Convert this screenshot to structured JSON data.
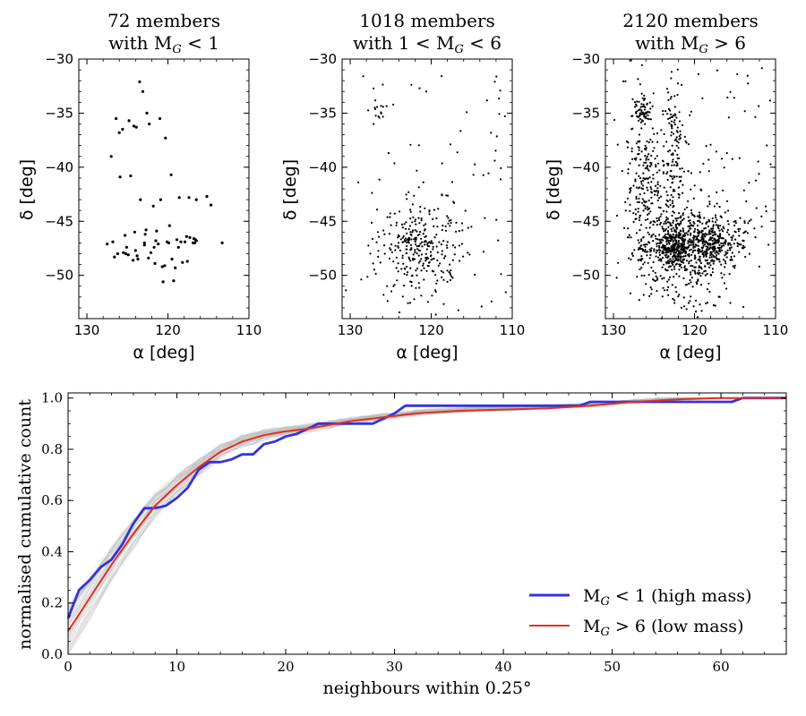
{
  "chart_data": {
    "panels": [
      {
        "type": "scatter",
        "title_line1": "72 members",
        "title_pre": "with M",
        "title_sub": "G",
        "title_post": " < 1",
        "n_points": 72,
        "xlabel": "α [deg]",
        "ylabel": "δ [deg]",
        "xlim": [
          131,
          110
        ],
        "ylim": [
          -54,
          -30
        ],
        "xticks": [
          130,
          120,
          110
        ],
        "yticks": [
          -30,
          -35,
          -40,
          -45,
          -50
        ],
        "x": [
          126.0,
          125.6,
          124.8,
          124.2,
          123.9,
          123.5,
          123.1,
          122.6,
          122.3,
          121.0,
          120.3,
          119.6,
          125.9,
          126.4,
          124.6,
          123.4,
          122.7,
          121.8,
          120.9,
          119.8,
          118.6,
          117.4,
          116.5,
          115.2,
          114.7,
          125.3,
          124.1,
          122.9,
          121.5,
          120.1,
          118.9,
          117.7,
          116.8,
          127.5,
          126.8,
          125.1,
          123.8,
          122.1,
          121.2,
          119.9,
          118.7,
          117.9,
          116.9,
          116.5,
          126.2,
          124.9,
          123.7,
          122.4,
          121.6,
          120.4,
          119.1,
          117.6,
          116.7,
          113.3,
          125.5,
          124.3,
          122.9,
          121.7,
          120.6,
          119.3,
          118.2,
          117.3,
          116.6,
          127.0,
          126.6,
          125.2,
          124.0,
          122.8,
          121.4,
          120.7,
          119.5,
          118.4
        ],
        "y": [
          -36.8,
          -36.5,
          -35.7,
          -36.2,
          -36.3,
          -32.1,
          -33.0,
          -35.0,
          -36.0,
          -35.5,
          -37.3,
          -40.7,
          -40.9,
          -35.5,
          -40.8,
          -43.0,
          -45.8,
          -43.6,
          -43.0,
          -45.4,
          -42.8,
          -42.8,
          -43.0,
          -42.7,
          -43.5,
          -46.3,
          -46.0,
          -47.2,
          -46.8,
          -46.9,
          -46.7,
          -46.4,
          -46.6,
          -47.1,
          -46.9,
          -47.4,
          -48.2,
          -47.9,
          -47.1,
          -47.0,
          -47.4,
          -46.9,
          -47.0,
          -46.8,
          -48.0,
          -48.1,
          -48.5,
          -48.4,
          -48.9,
          -49.1,
          -49.3,
          -48.7,
          -47.0,
          -47.0,
          -47.9,
          -48.6,
          -47.0,
          -47.4,
          -50.6,
          -50.5,
          -48.8,
          -46.5,
          -46.7,
          -39.0,
          -48.3,
          -48.0,
          -47.7,
          -46.2,
          -45.9,
          -49.2,
          -48.5,
          -46.9
        ],
        "scatter_seed": 11
      },
      {
        "type": "scatter",
        "title_line1": "1018 members",
        "title_pre": "with 1 < M",
        "title_sub": "G",
        "title_post": " < 6",
        "n_points": 1018,
        "xlabel": "α [deg]",
        "ylabel": "δ [deg]",
        "xlim": [
          131,
          110
        ],
        "ylim": [
          -54,
          -30
        ],
        "xticks": [
          130,
          120,
          110
        ],
        "yticks": [
          -30,
          -35,
          -40,
          -45,
          -50
        ],
        "clusters": [
          {
            "cx": 121.0,
            "cy": -47.5,
            "sx": 2.8,
            "sy": 2.4,
            "n": 260
          },
          {
            "cx": 122.4,
            "cy": -47.0,
            "sx": 0.7,
            "sy": 0.7,
            "n": 40
          },
          {
            "cx": 126.6,
            "cy": -35.0,
            "sx": 0.5,
            "sy": 0.6,
            "n": 14
          }
        ],
        "uniform_box": [
          129.5,
          110.5,
          -53.0,
          -31.0
        ],
        "uniform_n": 70,
        "scatter_seed": 23
      },
      {
        "type": "scatter",
        "title_line1": "2120 members",
        "title_pre": "with M",
        "title_sub": "G",
        "title_post": " > 6",
        "n_points": 2120,
        "xlabel": "α [deg]",
        "ylabel": "δ [deg]",
        "xlim": [
          131,
          110
        ],
        "ylim": [
          -54,
          -30
        ],
        "xticks": [
          130,
          120,
          110
        ],
        "yticks": [
          -30,
          -35,
          -40,
          -45,
          -50
        ],
        "clusters": [
          {
            "cx": 121.5,
            "cy": -47.5,
            "sx": 2.8,
            "sy": 2.3,
            "n": 520
          },
          {
            "cx": 122.3,
            "cy": -47.2,
            "sx": 0.9,
            "sy": 0.9,
            "n": 200
          },
          {
            "cx": 117.8,
            "cy": -46.8,
            "sx": 1.3,
            "sy": 1.0,
            "n": 170
          },
          {
            "cx": 126.5,
            "cy": -34.8,
            "sx": 0.5,
            "sy": 0.6,
            "n": 55
          },
          {
            "cx": 126.0,
            "cy": -41.0,
            "sx": 1.5,
            "sy": 3.5,
            "n": 200
          },
          {
            "cx": 122.5,
            "cy": -38.0,
            "sx": 0.8,
            "sy": 4.0,
            "n": 130
          },
          {
            "cx": 126.5,
            "cy": -48.0,
            "sx": 0.5,
            "sy": 0.7,
            "n": 25
          },
          {
            "cx": 115.5,
            "cy": -47.0,
            "sx": 1.5,
            "sy": 1.5,
            "n": 60
          }
        ],
        "uniform_box": [
          129.5,
          110.5,
          -53.0,
          -30.5
        ],
        "uniform_n": 110,
        "scatter_seed": 37
      },
      {
        "type": "line",
        "xlabel": "neighbours within 0.25°",
        "ylabel": "normalised cumulative count",
        "xlim": [
          0,
          66
        ],
        "ylim": [
          0,
          1.02
        ],
        "xticks": [
          0,
          10,
          20,
          30,
          40,
          50,
          60
        ],
        "yticks": [
          0.0,
          0.2,
          0.4,
          0.6,
          0.8,
          1.0
        ],
        "series": [
          {
            "name_pre": "M",
            "name_sub": "G",
            "name_post": " < 1 (high mass)",
            "color": "#3333dd",
            "x": [
              0,
              1,
              2,
              3,
              4,
              5,
              6,
              7,
              8,
              9,
              10,
              11,
              12,
              13,
              14,
              15,
              16,
              17,
              18,
              19,
              20,
              21,
              22,
              23,
              24,
              25,
              26,
              27,
              28,
              29,
              30,
              31,
              32,
              40,
              47,
              48,
              52,
              55,
              61,
              62,
              66
            ],
            "y": [
              0.14,
              0.25,
              0.29,
              0.34,
              0.37,
              0.43,
              0.51,
              0.57,
              0.57,
              0.58,
              0.61,
              0.65,
              0.72,
              0.75,
              0.75,
              0.76,
              0.78,
              0.78,
              0.82,
              0.83,
              0.85,
              0.86,
              0.88,
              0.9,
              0.9,
              0.9,
              0.9,
              0.9,
              0.9,
              0.92,
              0.94,
              0.97,
              0.97,
              0.97,
              0.97,
              0.985,
              0.985,
              0.985,
              0.985,
              1.0,
              1.0
            ]
          },
          {
            "name_pre": "M",
            "name_sub": "G",
            "name_post": " > 6 (low mass)",
            "color": "#e03020",
            "x": [
              0,
              2,
              4,
              6,
              8,
              10,
              12,
              14,
              16,
              18,
              20,
              22,
              24,
              26,
              28,
              30,
              32,
              36,
              40,
              44,
              48,
              52,
              56,
              60,
              62,
              66
            ],
            "y": [
              0.09,
              0.22,
              0.35,
              0.47,
              0.58,
              0.66,
              0.73,
              0.79,
              0.83,
              0.855,
              0.87,
              0.88,
              0.895,
              0.91,
              0.92,
              0.93,
              0.94,
              0.95,
              0.955,
              0.96,
              0.97,
              0.985,
              0.995,
              1.0,
              1.0,
              1.0
            ]
          }
        ],
        "background_curves": 60,
        "legend": "lower right"
      }
    ]
  }
}
